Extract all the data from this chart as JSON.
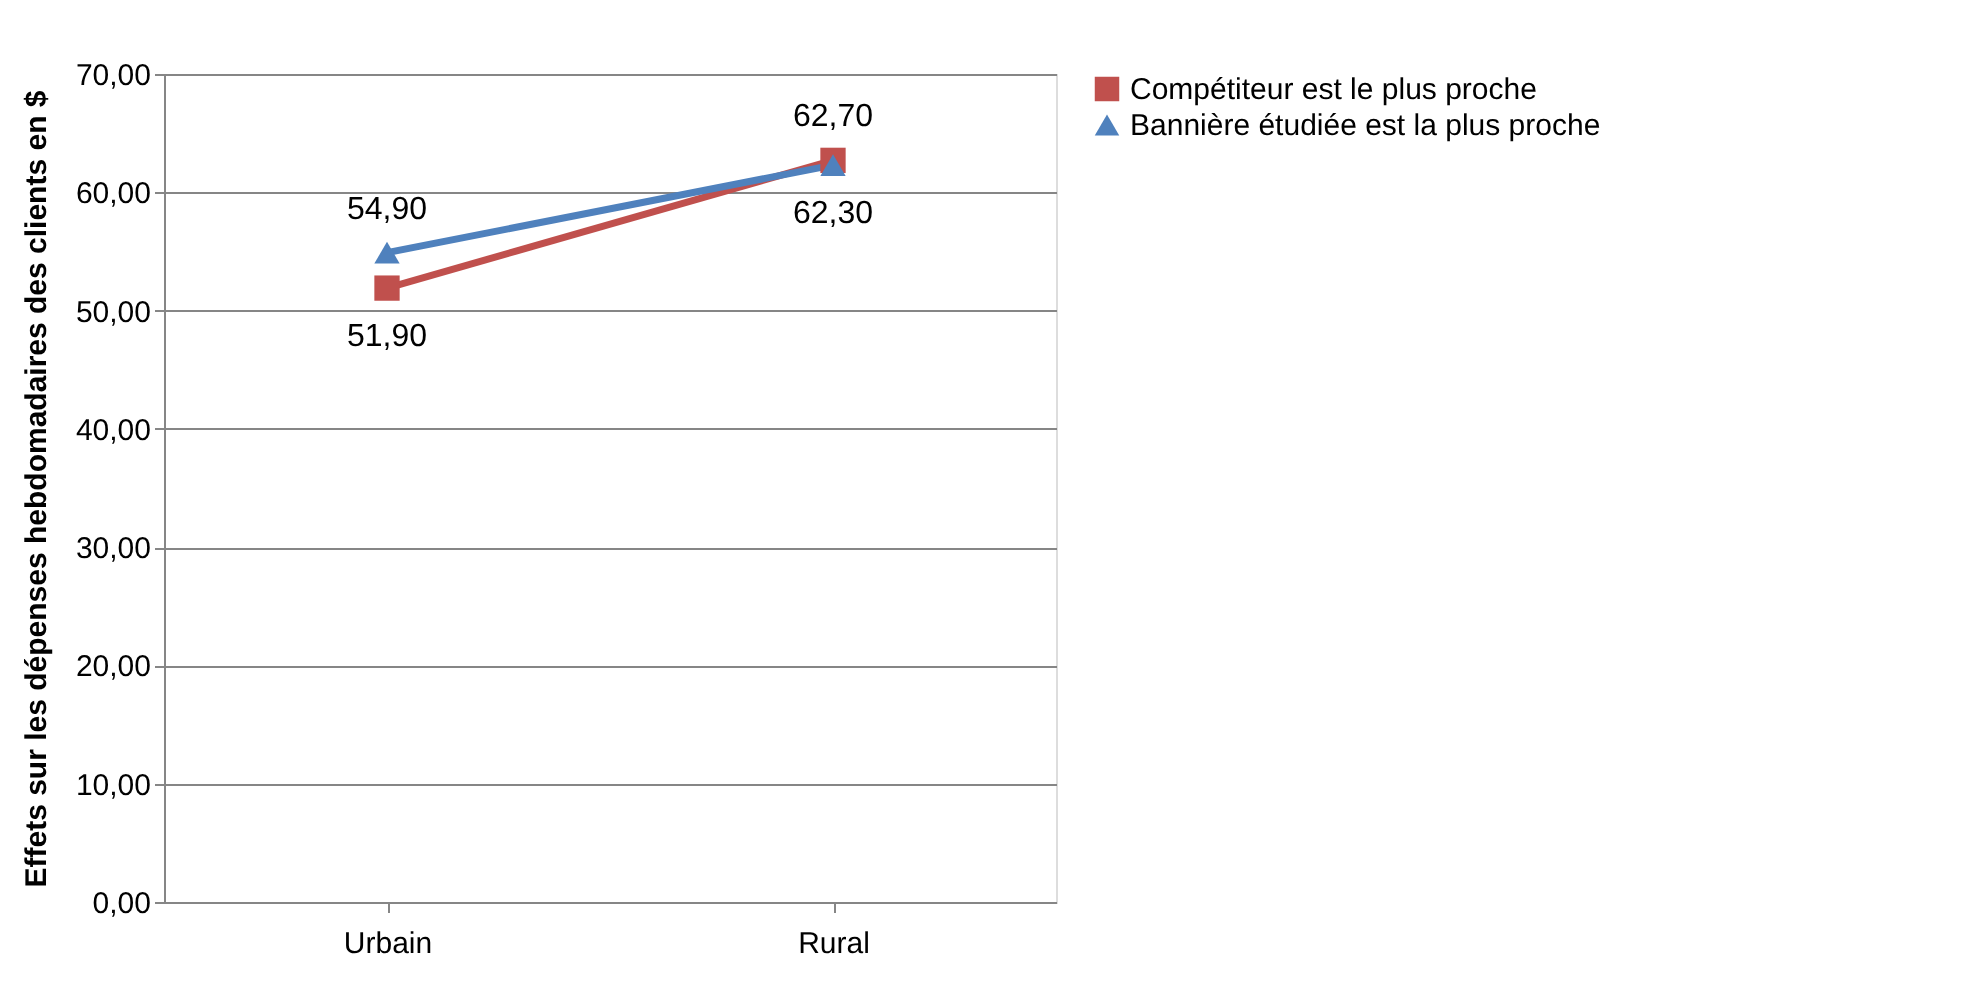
{
  "chart_data": {
    "type": "line",
    "ylabel": "Effets sur les dépenses hebdomadaires des clients en $",
    "categories": [
      "Urbain",
      "Rural"
    ],
    "ylim": [
      0,
      70
    ],
    "yticks": [
      {
        "value": 0,
        "label": "0,00"
      },
      {
        "value": 10,
        "label": "10,00"
      },
      {
        "value": 20,
        "label": "20,00"
      },
      {
        "value": 30,
        "label": "30,00"
      },
      {
        "value": 40,
        "label": "40,00"
      },
      {
        "value": 50,
        "label": "50,00"
      },
      {
        "value": 60,
        "label": "60,00"
      },
      {
        "value": 70,
        "label": "70,00"
      }
    ],
    "grid": "y",
    "legend": "right",
    "line_style": "solid",
    "series": [
      {
        "name": "Compétiteur est le plus proche",
        "color": "#c0504d",
        "marker": "square",
        "values": [
          51.9,
          62.7
        ],
        "value_labels": [
          "51,90",
          "62,70"
        ]
      },
      {
        "name": "Bannière étudiée est la plus proche",
        "color": "#4f81bd",
        "marker": "triangle",
        "values": [
          54.9,
          62.3
        ],
        "value_labels": [
          "54,90",
          "62,30"
        ]
      }
    ]
  }
}
